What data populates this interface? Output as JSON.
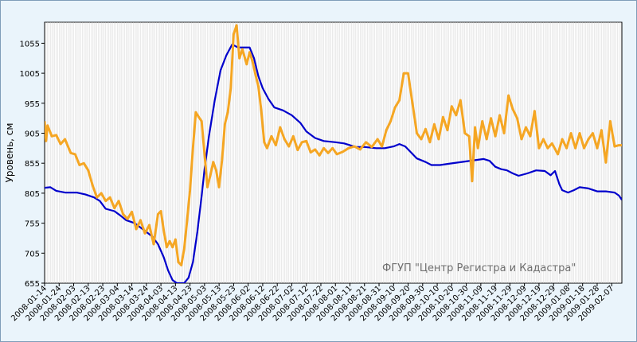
{
  "chart_data": {
    "type": "line",
    "ylabel": "Уровень, см",
    "watermark": "ФГУП \"Центр Регистра и Кадастра\"",
    "ylim": [
      655,
      1090
    ],
    "yticks": [
      655,
      705,
      755,
      805,
      855,
      905,
      955,
      1005,
      1055
    ],
    "x_start": "2008-01-14",
    "x_end": "2009-02-14",
    "xticks": [
      "2008-01-14",
      "2008-01-24",
      "2008-02-03",
      "2008-02-13",
      "2008-02-23",
      "2008-03-04",
      "2008-03-14",
      "2008-03-24",
      "2008-04-03",
      "2008-04-13",
      "2008-04-23",
      "2008-05-03",
      "2008-05-13",
      "2008-05-23",
      "2008-06-02",
      "2008-06-12",
      "2008-06-22",
      "2008-07-02",
      "2008-07-12",
      "2008-07-22",
      "2008-08-01",
      "2008-08-11",
      "2008-08-21",
      "2008-08-31",
      "2008-09-10",
      "2008-09-20",
      "2008-09-30",
      "2008-10-10",
      "2008-10-20",
      "2008-10-30",
      "2008-11-09",
      "2008-11-19",
      "2008-11-29",
      "2008-12-09",
      "2008-12-19",
      "2008-12-29",
      "2009-01-08",
      "2009-01-18",
      "2009-01-28",
      "2009-02-07"
    ],
    "grid": true,
    "series": [
      {
        "color": "#0000cc",
        "points": [
          [
            "2008-01-14",
            814
          ],
          [
            "2008-01-18",
            815
          ],
          [
            "2008-01-22",
            809
          ],
          [
            "2008-01-28",
            806
          ],
          [
            "2008-02-05",
            806
          ],
          [
            "2008-02-11",
            803
          ],
          [
            "2008-02-17",
            798
          ],
          [
            "2008-02-21",
            792
          ],
          [
            "2008-02-25",
            779
          ],
          [
            "2008-03-02",
            775
          ],
          [
            "2008-03-06",
            768
          ],
          [
            "2008-03-10",
            760
          ],
          [
            "2008-03-16",
            755
          ],
          [
            "2008-03-22",
            744
          ],
          [
            "2008-03-28",
            733
          ],
          [
            "2008-04-01",
            720
          ],
          [
            "2008-04-05",
            698
          ],
          [
            "2008-04-08",
            676
          ],
          [
            "2008-04-11",
            660
          ],
          [
            "2008-04-14",
            655
          ],
          [
            "2008-04-19",
            655
          ],
          [
            "2008-04-22",
            664
          ],
          [
            "2008-04-25",
            690
          ],
          [
            "2008-04-28",
            740
          ],
          [
            "2008-05-01",
            800
          ],
          [
            "2008-05-03",
            845
          ],
          [
            "2008-05-06",
            900
          ],
          [
            "2008-05-10",
            960
          ],
          [
            "2008-05-14",
            1010
          ],
          [
            "2008-05-18",
            1035
          ],
          [
            "2008-05-22",
            1053
          ],
          [
            "2008-05-26",
            1048
          ],
          [
            "2008-05-30",
            1048
          ],
          [
            "2008-06-03",
            1048
          ],
          [
            "2008-06-06",
            1030
          ],
          [
            "2008-06-09",
            1000
          ],
          [
            "2008-06-12",
            980
          ],
          [
            "2008-06-16",
            962
          ],
          [
            "2008-06-20",
            948
          ],
          [
            "2008-06-26",
            943
          ],
          [
            "2008-07-02",
            935
          ],
          [
            "2008-07-08",
            922
          ],
          [
            "2008-07-12",
            908
          ],
          [
            "2008-07-18",
            897
          ],
          [
            "2008-07-24",
            892
          ],
          [
            "2008-08-01",
            890
          ],
          [
            "2008-08-07",
            888
          ],
          [
            "2008-08-15",
            882
          ],
          [
            "2008-08-21",
            882
          ],
          [
            "2008-08-29",
            880
          ],
          [
            "2008-09-04",
            880
          ],
          [
            "2008-09-10",
            883
          ],
          [
            "2008-09-14",
            887
          ],
          [
            "2008-09-18",
            883
          ],
          [
            "2008-09-22",
            873
          ],
          [
            "2008-09-26",
            863
          ],
          [
            "2008-10-02",
            857
          ],
          [
            "2008-10-06",
            852
          ],
          [
            "2008-10-12",
            852
          ],
          [
            "2008-10-18",
            854
          ],
          [
            "2008-10-24",
            856
          ],
          [
            "2008-10-30",
            858
          ],
          [
            "2008-11-05",
            860
          ],
          [
            "2008-11-11",
            862
          ],
          [
            "2008-11-15",
            859
          ],
          [
            "2008-11-19",
            849
          ],
          [
            "2008-11-23",
            845
          ],
          [
            "2008-11-27",
            843
          ],
          [
            "2008-12-01",
            838
          ],
          [
            "2008-12-05",
            834
          ],
          [
            "2008-12-11",
            838
          ],
          [
            "2008-12-17",
            843
          ],
          [
            "2008-12-23",
            842
          ],
          [
            "2008-12-27",
            835
          ],
          [
            "2008-12-30",
            842
          ],
          [
            "2009-01-02",
            820
          ],
          [
            "2009-01-04",
            810
          ],
          [
            "2009-01-08",
            806
          ],
          [
            "2009-01-12",
            810
          ],
          [
            "2009-01-16",
            815
          ],
          [
            "2009-01-22",
            813
          ],
          [
            "2009-01-28",
            808
          ],
          [
            "2009-02-03",
            808
          ],
          [
            "2009-02-09",
            806
          ],
          [
            "2009-02-12",
            801
          ],
          [
            "2009-02-14",
            794
          ]
        ]
      },
      {
        "color": "#f5a623",
        "points": [
          [
            "2008-01-14",
            925
          ],
          [
            "2008-01-15",
            892
          ],
          [
            "2008-01-16",
            918
          ],
          [
            "2008-01-19",
            900
          ],
          [
            "2008-01-22",
            902
          ],
          [
            "2008-01-25",
            887
          ],
          [
            "2008-01-28",
            895
          ],
          [
            "2008-02-01",
            872
          ],
          [
            "2008-02-04",
            870
          ],
          [
            "2008-02-07",
            852
          ],
          [
            "2008-02-10",
            855
          ],
          [
            "2008-02-13",
            843
          ],
          [
            "2008-02-16",
            818
          ],
          [
            "2008-02-19",
            798
          ],
          [
            "2008-02-22",
            805
          ],
          [
            "2008-02-25",
            792
          ],
          [
            "2008-02-28",
            798
          ],
          [
            "2008-03-02",
            780
          ],
          [
            "2008-03-05",
            792
          ],
          [
            "2008-03-08",
            770
          ],
          [
            "2008-03-11",
            762
          ],
          [
            "2008-03-14",
            774
          ],
          [
            "2008-03-17",
            745
          ],
          [
            "2008-03-20",
            760
          ],
          [
            "2008-03-23",
            738
          ],
          [
            "2008-03-26",
            752
          ],
          [
            "2008-03-29",
            720
          ],
          [
            "2008-04-01",
            770
          ],
          [
            "2008-04-03",
            775
          ],
          [
            "2008-04-05",
            742
          ],
          [
            "2008-04-07",
            715
          ],
          [
            "2008-04-09",
            725
          ],
          [
            "2008-04-11",
            715
          ],
          [
            "2008-04-13",
            728
          ],
          [
            "2008-04-15",
            690
          ],
          [
            "2008-04-17",
            685
          ],
          [
            "2008-04-19",
            712
          ],
          [
            "2008-04-21",
            760
          ],
          [
            "2008-04-23",
            810
          ],
          [
            "2008-04-25",
            880
          ],
          [
            "2008-04-27",
            940
          ],
          [
            "2008-04-29",
            932
          ],
          [
            "2008-05-01",
            925
          ],
          [
            "2008-05-03",
            870
          ],
          [
            "2008-05-05",
            815
          ],
          [
            "2008-05-07",
            835
          ],
          [
            "2008-05-09",
            857
          ],
          [
            "2008-05-11",
            843
          ],
          [
            "2008-05-13",
            815
          ],
          [
            "2008-05-15",
            860
          ],
          [
            "2008-05-17",
            920
          ],
          [
            "2008-05-19",
            940
          ],
          [
            "2008-05-21",
            980
          ],
          [
            "2008-05-23",
            1070
          ],
          [
            "2008-05-25",
            1085
          ],
          [
            "2008-05-27",
            1030
          ],
          [
            "2008-05-29",
            1045
          ],
          [
            "2008-06-01",
            1020
          ],
          [
            "2008-06-03",
            1040
          ],
          [
            "2008-06-05",
            1025
          ],
          [
            "2008-06-07",
            1003
          ],
          [
            "2008-06-09",
            983
          ],
          [
            "2008-06-11",
            943
          ],
          [
            "2008-06-13",
            890
          ],
          [
            "2008-06-15",
            880
          ],
          [
            "2008-06-18",
            900
          ],
          [
            "2008-06-21",
            885
          ],
          [
            "2008-06-24",
            915
          ],
          [
            "2008-06-27",
            895
          ],
          [
            "2008-06-30",
            883
          ],
          [
            "2008-07-03",
            900
          ],
          [
            "2008-07-06",
            877
          ],
          [
            "2008-07-09",
            890
          ],
          [
            "2008-07-12",
            892
          ],
          [
            "2008-07-15",
            873
          ],
          [
            "2008-07-18",
            878
          ],
          [
            "2008-07-21",
            868
          ],
          [
            "2008-07-24",
            880
          ],
          [
            "2008-07-27",
            872
          ],
          [
            "2008-07-30",
            880
          ],
          [
            "2008-08-02",
            870
          ],
          [
            "2008-08-06",
            874
          ],
          [
            "2008-08-10",
            880
          ],
          [
            "2008-08-14",
            883
          ],
          [
            "2008-08-18",
            878
          ],
          [
            "2008-08-22",
            890
          ],
          [
            "2008-08-26",
            882
          ],
          [
            "2008-08-30",
            895
          ],
          [
            "2008-09-02",
            883
          ],
          [
            "2008-09-05",
            910
          ],
          [
            "2008-09-08",
            925
          ],
          [
            "2008-09-11",
            948
          ],
          [
            "2008-09-14",
            960
          ],
          [
            "2008-09-17",
            1005
          ],
          [
            "2008-09-20",
            1005
          ],
          [
            "2008-09-23",
            955
          ],
          [
            "2008-09-26",
            905
          ],
          [
            "2008-09-29",
            895
          ],
          [
            "2008-10-02",
            912
          ],
          [
            "2008-10-05",
            890
          ],
          [
            "2008-10-08",
            920
          ],
          [
            "2008-10-11",
            895
          ],
          [
            "2008-10-14",
            932
          ],
          [
            "2008-10-17",
            910
          ],
          [
            "2008-10-20",
            950
          ],
          [
            "2008-10-23",
            935
          ],
          [
            "2008-10-26",
            960
          ],
          [
            "2008-10-29",
            905
          ],
          [
            "2008-11-01",
            900
          ],
          [
            "2008-11-03",
            825
          ],
          [
            "2008-11-05",
            915
          ],
          [
            "2008-11-07",
            880
          ],
          [
            "2008-11-10",
            925
          ],
          [
            "2008-11-13",
            895
          ],
          [
            "2008-11-16",
            930
          ],
          [
            "2008-11-19",
            900
          ],
          [
            "2008-11-22",
            935
          ],
          [
            "2008-11-25",
            905
          ],
          [
            "2008-11-28",
            968
          ],
          [
            "2008-12-01",
            945
          ],
          [
            "2008-12-04",
            930
          ],
          [
            "2008-12-07",
            895
          ],
          [
            "2008-12-10",
            915
          ],
          [
            "2008-12-13",
            900
          ],
          [
            "2008-12-16",
            942
          ],
          [
            "2008-12-19",
            880
          ],
          [
            "2008-12-22",
            895
          ],
          [
            "2008-12-25",
            880
          ],
          [
            "2008-12-28",
            888
          ],
          [
            "2009-01-01",
            870
          ],
          [
            "2009-01-04",
            895
          ],
          [
            "2009-01-07",
            880
          ],
          [
            "2009-01-10",
            905
          ],
          [
            "2009-01-13",
            880
          ],
          [
            "2009-01-16",
            905
          ],
          [
            "2009-01-19",
            880
          ],
          [
            "2009-01-22",
            895
          ],
          [
            "2009-01-25",
            905
          ],
          [
            "2009-01-28",
            880
          ],
          [
            "2009-01-31",
            910
          ],
          [
            "2009-02-03",
            856
          ],
          [
            "2009-02-06",
            925
          ],
          [
            "2009-02-09",
            883
          ],
          [
            "2009-02-12",
            885
          ],
          [
            "2009-02-14",
            885
          ]
        ]
      }
    ]
  }
}
